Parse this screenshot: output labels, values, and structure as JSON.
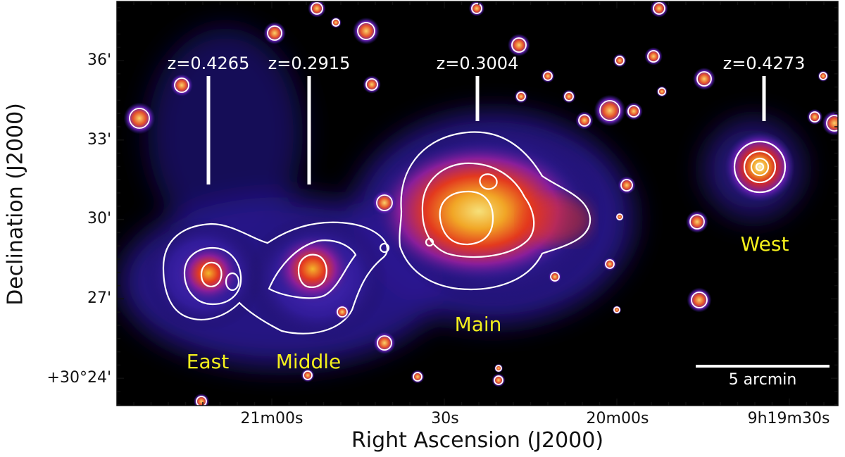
{
  "figure": {
    "x_axis_title": "Right Ascension (J2000)",
    "y_axis_title": "Declination (J2000)",
    "x_ticks": [
      "21m00s",
      "30s",
      "20m00s",
      "9h19m30s"
    ],
    "y_ticks": [
      "36'",
      "33'",
      "30'",
      "27'",
      "+30°24'"
    ]
  },
  "clusters": [
    {
      "name": "East",
      "redshift": "z=0.4265"
    },
    {
      "name": "Middle",
      "redshift": "z=0.2915"
    },
    {
      "name": "Main",
      "redshift": "z=0.3004"
    },
    {
      "name": "West",
      "redshift": "z=0.4273"
    }
  ],
  "scale_bar": {
    "label": "5 arcmin"
  },
  "colors": {
    "background": "#000000",
    "emission_low": "#3a1fb0",
    "emission_mid": "#e8371f",
    "emission_high": "#f3e27a",
    "contour": "#ffffff",
    "cluster_name": "#f4ef1c",
    "redshift_text": "#ffffff"
  }
}
